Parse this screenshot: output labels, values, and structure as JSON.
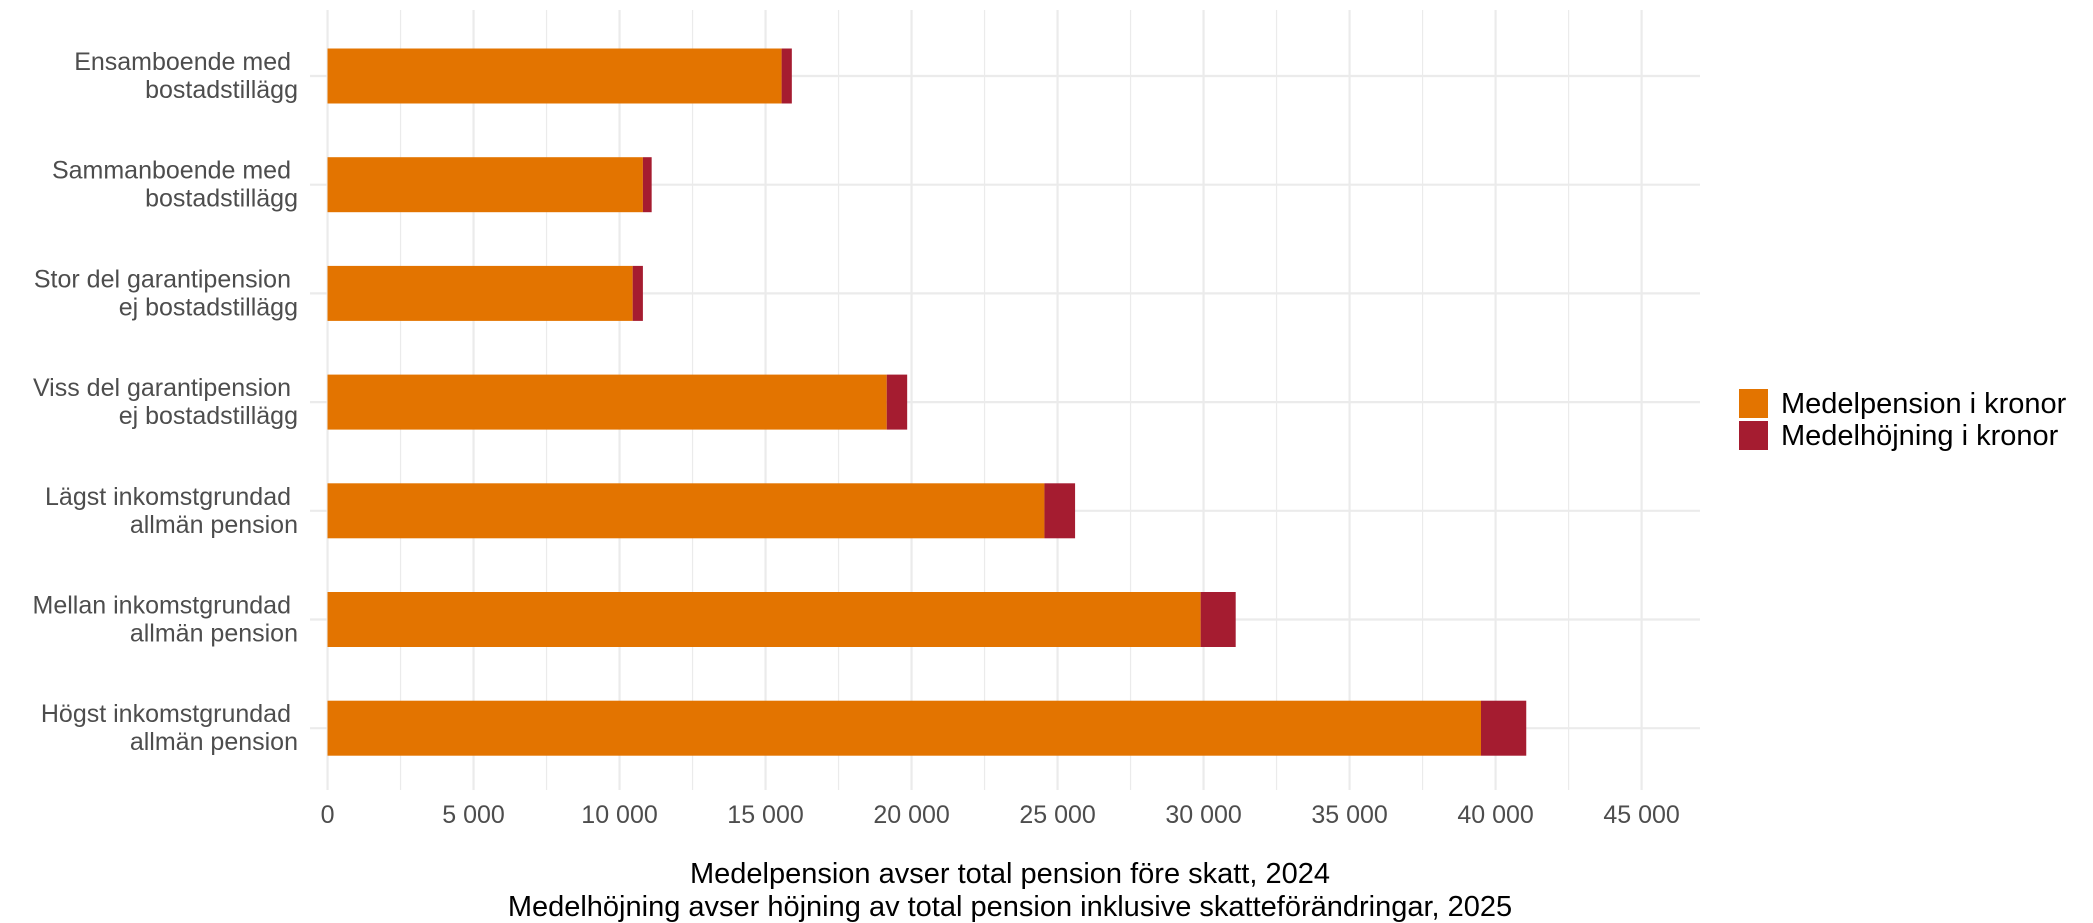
{
  "chart_data": {
    "type": "bar",
    "orientation": "horizontal",
    "stacked": true,
    "categories": [
      [
        "Ensamboende med",
        "bostadstillägg"
      ],
      [
        "Sammanboende med",
        "bostadstillägg"
      ],
      [
        "Stor del garantipension",
        "ej bostadstillägg"
      ],
      [
        "Viss del garantipension",
        "ej bostadstillägg"
      ],
      [
        "Lägst inkomstgrundad",
        "allmän pension"
      ],
      [
        "Mellan inkomstgrundad",
        "allmän pension"
      ],
      [
        "Högst inkomstgrundad",
        "allmän pension"
      ]
    ],
    "series": [
      {
        "name": "Medelpension i kronor",
        "color": "#E37400",
        "values": [
          15550,
          10800,
          10450,
          19150,
          24550,
          29900,
          39500
        ]
      },
      {
        "name": "Medelhöjning i kronor",
        "color": "#A51C30",
        "values": [
          350,
          300,
          350,
          700,
          1050,
          1200,
          1550
        ]
      }
    ],
    "xticks": [
      0,
      5000,
      10000,
      15000,
      20000,
      25000,
      30000,
      35000,
      40000,
      45000
    ],
    "xtick_labels": [
      "0",
      "5 000",
      "10 000",
      "15 000",
      "20 000",
      "25 000",
      "30 000",
      "35 000",
      "40 000",
      "45 000"
    ],
    "xlim": [
      -600,
      47000
    ],
    "xlabel": [
      "Medelpension avser total pension före skatt, 2024",
      "Medelhöjning avser höjning av total pension inklusive skatteförändringar, 2025"
    ],
    "ylabel": "",
    "title": "",
    "grid": true,
    "legend_position": "right"
  }
}
